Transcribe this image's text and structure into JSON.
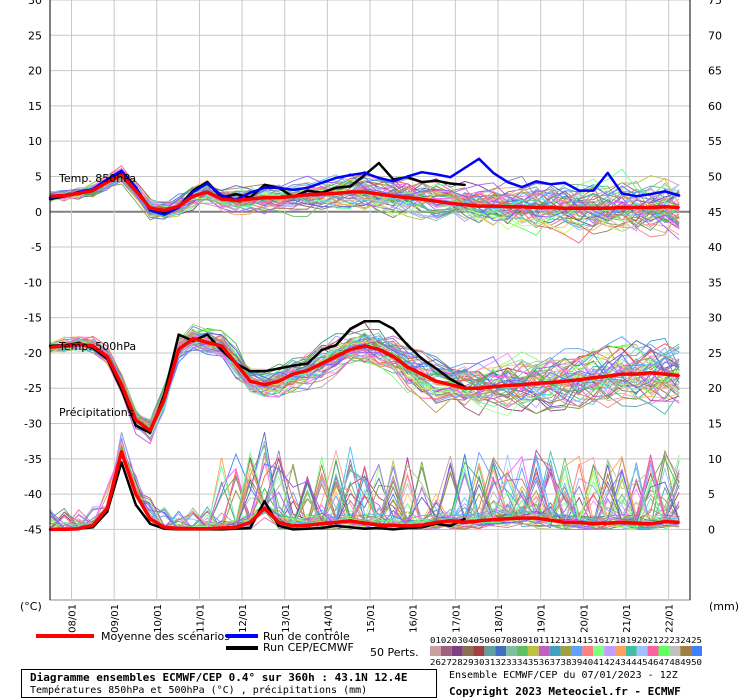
{
  "chart_data": {
    "type": "line",
    "x_ticks": [
      "08/01",
      "09/01",
      "10/01",
      "11/01",
      "12/01",
      "13/01",
      "14/01",
      "15/01",
      "16/01",
      "17/01",
      "18/01",
      "19/01",
      "20/01",
      "21/01",
      "22/01"
    ],
    "left_axis": {
      "unit": "(°C)",
      "ticks": [
        "30",
        "25",
        "20",
        "15",
        "10",
        "5",
        "0",
        "-5",
        "-10",
        "-15",
        "-20",
        "-25",
        "-30",
        "-35",
        "-40",
        "-45"
      ],
      "ylim": [
        -55,
        30
      ]
    },
    "right_axis": {
      "unit": "(mm)",
      "ticks": [
        "75",
        "70",
        "65",
        "60",
        "55",
        "50",
        "45",
        "40",
        "35",
        "30",
        "25",
        "20",
        "15",
        "10",
        "5",
        "0"
      ]
    },
    "grid": true,
    "panels": [
      {
        "label": "Temp. 850hPa"
      },
      {
        "label": "Temp. 500hPa"
      },
      {
        "label": "Précipitations"
      }
    ],
    "series": [
      {
        "name": "Moyenne des scénarios",
        "color": "#ff0000",
        "panel": "t850",
        "values": [
          2.2,
          2.3,
          2.6,
          3.0,
          4.2,
          5.2,
          3.0,
          0.5,
          0.2,
          0.8,
          2.2,
          2.8,
          1.8,
          1.6,
          1.8,
          2.0,
          2.0,
          2.2,
          2.4,
          2.5,
          2.6,
          2.8,
          2.8,
          2.5,
          2.2,
          2.0,
          1.8,
          1.5,
          1.2,
          1.0,
          0.8,
          0.8,
          0.7,
          0.7,
          0.6,
          0.6,
          0.5,
          0.5,
          0.5,
          0.5,
          0.6,
          0.6,
          0.6,
          0.7,
          0.6
        ]
      },
      {
        "name": "Run de contrôle",
        "color": "#0000ff",
        "panel": "t850",
        "values": [
          2.0,
          2.2,
          2.8,
          3.2,
          4.6,
          5.8,
          3.5,
          0.2,
          -0.4,
          0.6,
          2.8,
          4.0,
          2.3,
          1.7,
          2.7,
          3.4,
          3.4,
          3.1,
          3.4,
          4.1,
          4.8,
          5.2,
          5.5,
          4.8,
          4.3,
          5.0,
          5.6,
          5.3,
          4.9,
          6.2,
          7.5,
          5.5,
          4.2,
          3.5,
          4.3,
          3.9,
          4.1,
          3.0,
          3.0,
          5.5,
          2.6,
          2.2,
          2.5,
          2.9,
          2.3
        ]
      },
      {
        "name": "Run CEP/ECMWF",
        "color": "#000000",
        "panel": "t850",
        "values": [
          1.8,
          2.2,
          2.7,
          3.0,
          4.4,
          5.6,
          3.3,
          0.5,
          -0.2,
          0.7,
          3.0,
          4.2,
          2.0,
          2.5,
          2.0,
          3.8,
          3.4,
          2.1,
          3.0,
          2.7,
          3.4,
          3.6,
          5.2,
          6.9,
          4.6,
          4.9,
          4.2,
          4.4,
          4.0,
          3.8
        ]
      },
      {
        "name": "Moyenne des scénarios",
        "color": "#ff0000",
        "panel": "t500",
        "values": [
          -19.2,
          -19.0,
          -18.8,
          -19.0,
          -20.5,
          -24.5,
          -29.5,
          -31.0,
          -26.5,
          -19.5,
          -18.0,
          -18.5,
          -19.0,
          -21.5,
          -24.0,
          -24.5,
          -24.0,
          -23.0,
          -22.5,
          -21.5,
          -20.5,
          -19.5,
          -19.0,
          -19.5,
          -20.5,
          -22.0,
          -23.0,
          -24.0,
          -24.5,
          -25.0,
          -25.0,
          -24.8,
          -24.6,
          -24.5,
          -24.3,
          -24.2,
          -24.0,
          -23.8,
          -23.5,
          -23.3,
          -23.0,
          -23.0,
          -22.8,
          -23.0,
          -23.2
        ]
      },
      {
        "name": "Run CEP/ECMWF",
        "color": "#000000",
        "panel": "t500",
        "values": [
          -19.0,
          -18.9,
          -18.6,
          -19.3,
          -20.8,
          -25.2,
          -30.3,
          -31.3,
          -25.8,
          -17.4,
          -18.3,
          -17.4,
          -19.6,
          -21.5,
          -22.6,
          -22.6,
          -22.2,
          -21.8,
          -21.5,
          -19.6,
          -18.9,
          -16.6,
          -15.5,
          -15.5,
          -16.6,
          -18.9,
          -20.8,
          -22.2,
          -23.7,
          -24.8
        ]
      },
      {
        "name": "Moyenne des scénarios",
        "color": "#ff0000",
        "panel": "precip",
        "values": [
          0.0,
          0.0,
          0.1,
          0.6,
          3.0,
          11.0,
          5.0,
          1.5,
          0.3,
          0.1,
          0.1,
          0.1,
          0.2,
          0.3,
          1.0,
          3.0,
          1.0,
          0.5,
          0.6,
          0.8,
          1.0,
          1.2,
          0.9,
          0.6,
          0.6,
          0.5,
          0.6,
          1.0,
          1.2,
          1.0,
          1.2,
          1.4,
          1.5,
          1.6,
          1.6,
          1.3,
          1.0,
          1.0,
          0.8,
          0.9,
          1.0,
          0.9,
          0.8,
          1.1,
          1.0
        ]
      },
      {
        "name": "Run CEP/ECMWF",
        "color": "#000000",
        "panel": "precip",
        "values": [
          0.0,
          0.0,
          0.1,
          0.3,
          2.5,
          9.5,
          3.5,
          0.8,
          0.1,
          0.0,
          0.0,
          0.0,
          0.0,
          0.1,
          0.2,
          4.0,
          0.5,
          0.0,
          0.1,
          0.2,
          0.5,
          0.3,
          0.1,
          0.2,
          0.0,
          0.2,
          0.3,
          0.8,
          0.5,
          1.5
        ]
      }
    ]
  },
  "legend": {
    "mean_label": "Moyenne des scénarios",
    "control_label": "Run de contrôle",
    "cep_label": "Run CEP/ECMWF",
    "perts_label": "50 Perts.",
    "perts_row1": "01020304050607080910111213141516171819202122232425",
    "perts_row2": "26272829303132333435363738394041424344454647484950"
  },
  "pert_colors": [
    "#c9a0a0",
    "#a06080",
    "#804080",
    "#8a7050",
    "#a04040",
    "#60a0a0",
    "#4070c0",
    "#80c0a0",
    "#60c060",
    "#c0c040",
    "#c060c0",
    "#40a0c0",
    "#a0a040",
    "#60a0ff",
    "#ff8080",
    "#80ff80",
    "#c0a0ff",
    "#ffa060",
    "#40c0a0",
    "#a0c0ff",
    "#ff60a0",
    "#60ff60",
    "#c0c0c0",
    "#a08040",
    "#4080ff",
    "#c040a0",
    "#40c040",
    "#a0a0ff",
    "#ffc060",
    "#60c0ff",
    "#c08060",
    "#80a040",
    "#ff80ff",
    "#40a080",
    "#8080c0",
    "#c0c080",
    "#ff6060",
    "#60a060",
    "#a060ff",
    "#c0ff60",
    "#6060c0",
    "#ffa0a0",
    "#40c0ff",
    "#a0ff80",
    "#c08080",
    "#80c0c0",
    "#ff60ff",
    "#60ffa0",
    "#c0a060",
    "#8060ff"
  ],
  "footer": {
    "title": "Diagramme ensembles ECMWF/CEP 0.4° sur 360h : 43.1N 12.4E",
    "subtitle": "Températures 850hPa et 500hPa (°C) , précipitations (mm)",
    "run_info": "Ensemble ECMWF/CEP du 07/01/2023 - 12Z",
    "copyright": "Copyright 2023 Meteociel.fr - ECMWF"
  }
}
